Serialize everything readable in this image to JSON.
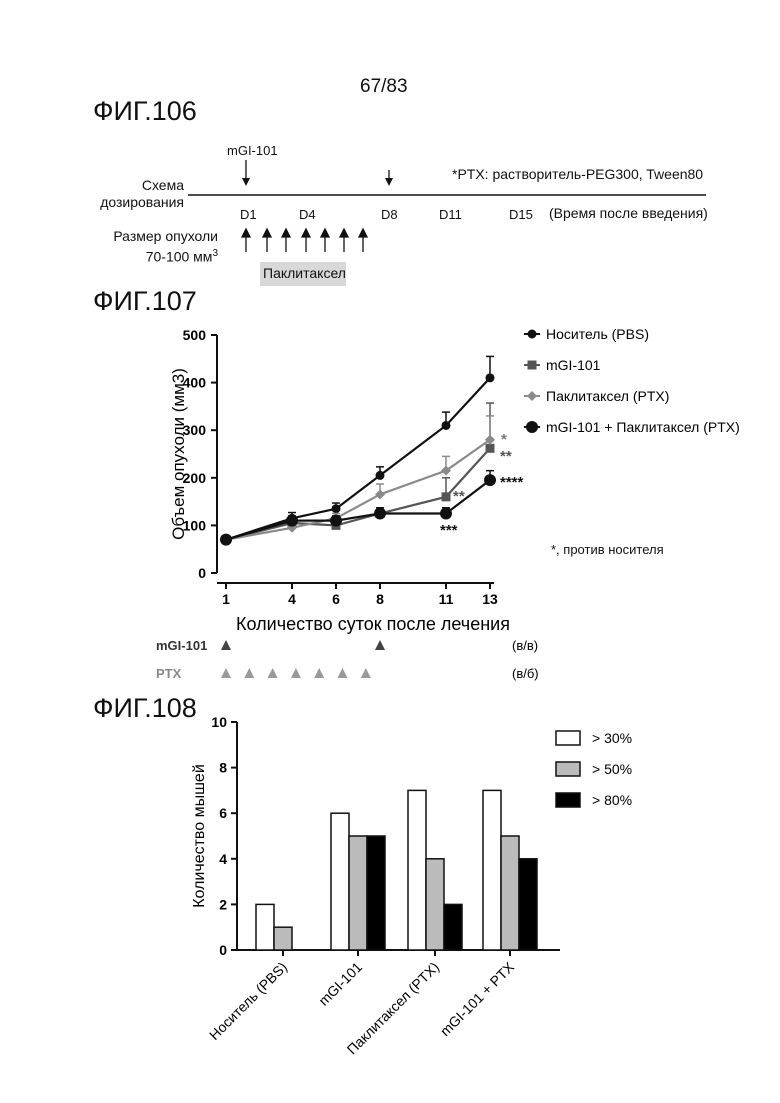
{
  "page_number": "67/83",
  "fig106": {
    "label": "ФИГ.106",
    "drug_marker": "mGI-101",
    "note": "*PTX: растворитель-PEG300, Tween80",
    "row1_label_line1": "Схема",
    "row1_label_line2": "дозирования",
    "days": [
      "D1",
      "D4",
      "D8",
      "D11",
      "D15"
    ],
    "time_label": "(Время после введения)",
    "row2_label_line1": "Размер опухоли",
    "row2_label_line2": "70-100 мм",
    "row2_label_sup": "3",
    "paclitaxel_box": "Паклитаксел"
  },
  "fig107": {
    "label": "ФИГ.107",
    "side_note": "*, против носителя",
    "dose_rows": [
      {
        "name": "mGI-101",
        "route": "(в/в)",
        "days": [
          1,
          8
        ]
      },
      {
        "name": "PTX",
        "route": "(в/б)",
        "days": [
          1,
          2,
          3,
          4,
          5,
          6,
          7
        ]
      }
    ],
    "significance": [
      {
        "text": "*",
        "color": "#777777"
      },
      {
        "text": "**",
        "color": "#555555"
      },
      {
        "text": "****",
        "color": "#111111"
      },
      {
        "text": "**",
        "color": "#555555"
      },
      {
        "text": "***",
        "color": "#111111"
      }
    ]
  },
  "fig108": {
    "label": "ФИГ.108"
  },
  "chart_data": [
    {
      "type": "line",
      "title": "",
      "xlabel": "Количество суток после лечения",
      "ylabel": "Объем опухоли (мм3)",
      "x": [
        1,
        4,
        6,
        8,
        11,
        13
      ],
      "xlim": [
        1,
        13
      ],
      "ylim": [
        0,
        500
      ],
      "yticks": [
        0,
        100,
        200,
        300,
        400,
        500
      ],
      "legend_position": "right",
      "series": [
        {
          "name": "Носитель (PBS)",
          "color": "#111111",
          "marker": "circle",
          "values": [
            70,
            115,
            135,
            205,
            310,
            410
          ],
          "errors": [
            5,
            12,
            12,
            18,
            28,
            45
          ]
        },
        {
          "name": "mGI-101",
          "color": "#555555",
          "marker": "square",
          "values": [
            70,
            105,
            100,
            125,
            160,
            262
          ],
          "errors": [
            5,
            10,
            10,
            12,
            40,
            95
          ]
        },
        {
          "name": "Паклитаксел (PTX)",
          "color": "#8a8a8a",
          "marker": "diamond",
          "values": [
            70,
            95,
            115,
            165,
            215,
            280
          ],
          "errors": [
            5,
            8,
            10,
            22,
            30,
            50
          ]
        },
        {
          "name": "mGI-101 + Паклитаксел (PTX)",
          "color": "#111111",
          "marker": "bigcircle",
          "values": [
            70,
            110,
            110,
            125,
            125,
            195
          ],
          "errors": [
            5,
            10,
            10,
            12,
            12,
            20
          ]
        }
      ]
    },
    {
      "type": "bar",
      "title": "",
      "xlabel": "",
      "ylabel": "Количество мышей",
      "categories": [
        "Носитель (PBS)",
        "mGI-101",
        "Паклитаксел (PTX)",
        "mGI-101 + PTX"
      ],
      "ylim": [
        0,
        10
      ],
      "yticks": [
        0,
        2,
        4,
        6,
        8,
        10
      ],
      "legend_position": "top-right",
      "series": [
        {
          "name": "> 30%",
          "color": "#ffffff",
          "values": [
            2,
            6,
            7,
            7
          ]
        },
        {
          "name": "> 50%",
          "color": "#bbbbbb",
          "values": [
            1,
            5,
            4,
            5
          ]
        },
        {
          "name": "> 80%",
          "color": "#000000",
          "values": [
            0,
            5,
            2,
            4
          ]
        }
      ]
    }
  ]
}
